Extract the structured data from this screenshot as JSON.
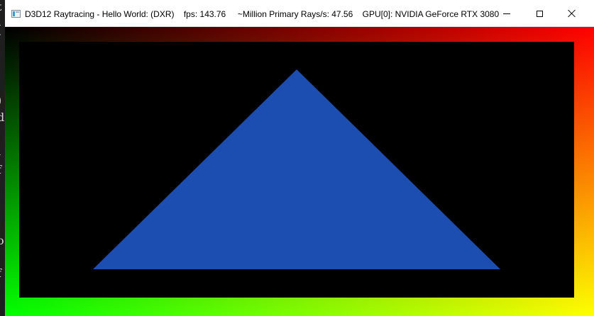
{
  "window": {
    "title": "D3D12 Raytracing - Hello World: (DXR)    fps: 143.76     ~Million Primary Rays/s: 47.56    GPU[0]: NVIDIA GeForce RTX 3080",
    "icon": "app-window-icon",
    "controls": {
      "minimize_icon": "minimize-icon",
      "maximize_icon": "maximize-icon",
      "close_icon": "close-icon"
    }
  },
  "background_app": {
    "glyphs": [
      "t",
      "[",
      ")",
      "d",
      "i",
      "f",
      "o",
      "f"
    ]
  },
  "scene": {
    "background_color": "#000000",
    "triangle_color": "#1c4eb2",
    "gradient_corners": {
      "top_left": "#000000",
      "top_right": "#ff0000",
      "bottom_left": "#00ff00",
      "bottom_right": "#ffff00"
    }
  }
}
